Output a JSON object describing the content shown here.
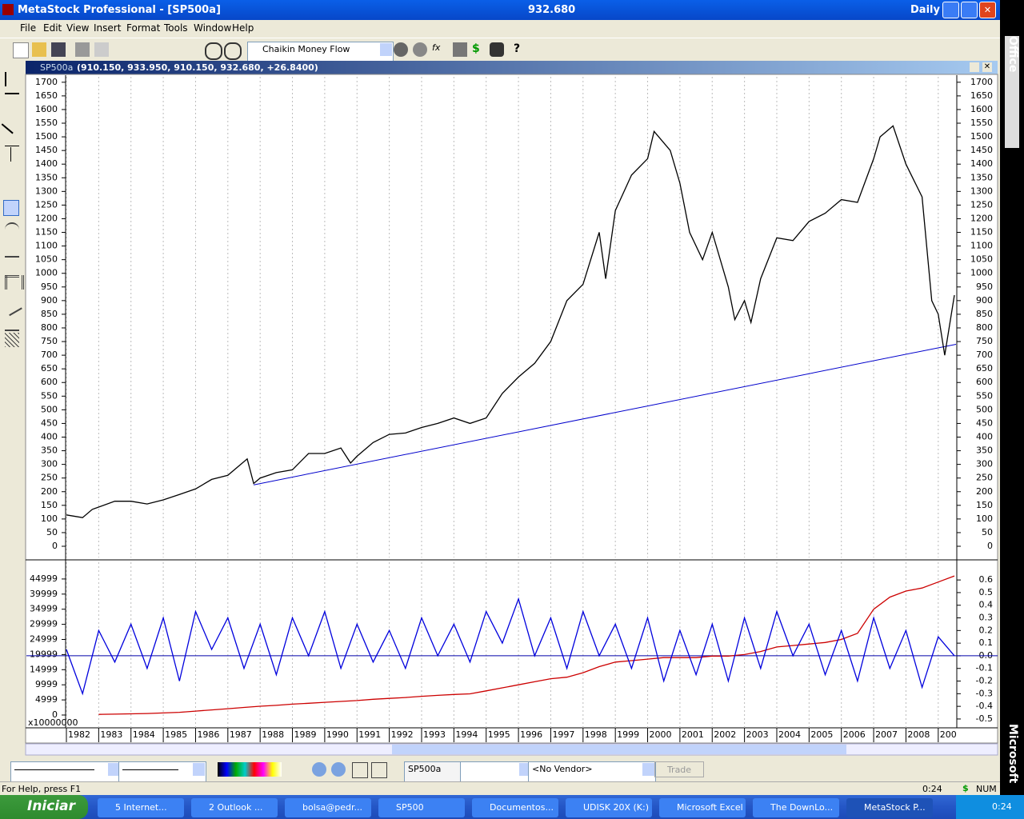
{
  "window": {
    "app_title": "MetaStock Professional - [SP500a]",
    "last_price": "932.680",
    "periodicity": "Daily"
  },
  "menu": [
    "File",
    "Edit",
    "View",
    "Insert",
    "Format",
    "Tools",
    "Window",
    "Help"
  ],
  "toolbar": {
    "indicator": "Chaikin Money Flow"
  },
  "chart_window": {
    "symbol": "SP500a",
    "ohlc": "(910.150, 933.950, 910.150, 932.680, +26.8400)"
  },
  "chart_data": [
    {
      "type": "line",
      "x": [
        1982,
        1982.5,
        1982.8,
        1983.5,
        1984,
        1984.5,
        1985,
        1985.5,
        1986,
        1986.5,
        1987,
        1987.6,
        1987.8,
        1988,
        1988.5,
        1989,
        1989.5,
        1990,
        1990.5,
        1990.8,
        1991,
        1991.5,
        1992,
        1992.5,
        1993,
        1993.5,
        1994,
        1994.5,
        1995,
        1995.5,
        1996,
        1996.5,
        1997,
        1997.5,
        1998,
        1998.5,
        1998.7,
        1999,
        1999.5,
        2000,
        2000.2,
        2000.7,
        2001,
        2001.3,
        2001.7,
        2002,
        2002.5,
        2002.7,
        2003,
        2003.2,
        2003.5,
        2004,
        2004.5,
        2005,
        2005.5,
        2006,
        2006.5,
        2007,
        2007.2,
        2007.6,
        2008,
        2008.5,
        2008.8,
        2009,
        2009.2,
        2009.5
      ],
      "series": [
        {
          "color": "#000000",
          "values": [
            115,
            105,
            135,
            165,
            165,
            155,
            170,
            190,
            210,
            245,
            260,
            320,
            230,
            250,
            270,
            280,
            340,
            340,
            360,
            305,
            330,
            380,
            410,
            415,
            435,
            450,
            470,
            450,
            470,
            560,
            620,
            670,
            750,
            900,
            960,
            1150,
            980,
            1230,
            1360,
            1420,
            1520,
            1450,
            1330,
            1150,
            1050,
            1150,
            950,
            830,
            900,
            820,
            980,
            1130,
            1120,
            1190,
            1220,
            1270,
            1260,
            1420,
            1500,
            1540,
            1400,
            1280,
            900,
            850,
            700,
            920
          ]
        }
      ],
      "trendline": {
        "color": "#0000cc",
        "x": [
          1987.8,
          2009.55
        ],
        "values": [
          225,
          740
        ]
      },
      "xlim": [
        1982,
        2009.55
      ],
      "ylim": [
        -41,
        1720
      ],
      "xticks": [
        1982,
        1983,
        1984,
        1985,
        1986,
        1987,
        1988,
        1989,
        1990,
        1991,
        1992,
        1993,
        1994,
        1995,
        1996,
        1997,
        1998,
        1999,
        2000,
        2001,
        2002,
        2003,
        2004,
        2005,
        2006,
        2007,
        2008,
        {
          "value": 2009,
          "label": "200"
        }
      ],
      "yticks": [
        0,
        50,
        100,
        150,
        200,
        250,
        300,
        350,
        400,
        450,
        500,
        550,
        600,
        650,
        700,
        750,
        800,
        850,
        900,
        950,
        1000,
        1050,
        1100,
        1150,
        1200,
        1250,
        1300,
        1350,
        1400,
        1450,
        1500,
        1550,
        1600,
        1650,
        1700
      ],
      "grid": "x"
    },
    {
      "type": "line",
      "x": [
        1982,
        1982.5,
        1983,
        1983.5,
        1984,
        1984.5,
        1985,
        1985.5,
        1986,
        1986.5,
        1987,
        1987.5,
        1988,
        1988.5,
        1989,
        1989.5,
        1990,
        1990.5,
        1991,
        1991.5,
        1992,
        1992.5,
        1993,
        1993.5,
        1994,
        1994.5,
        1995,
        1995.5,
        1996,
        1996.5,
        1997,
        1997.5,
        1998,
        1998.5,
        1999,
        1999.5,
        2000,
        2000.5,
        2001,
        2001.5,
        2002,
        2002.5,
        2003,
        2003.5,
        2004,
        2004.5,
        2005,
        2005.5,
        2006,
        2006.5,
        2007,
        2007.5,
        2008,
        2008.5,
        2009,
        2009.5
      ],
      "series": [
        {
          "color": "#cc0000",
          "values": [
            null,
            null,
            200,
            300,
            400,
            500,
            700,
            900,
            1300,
            1700,
            2100,
            2500,
            2900,
            3200,
            3600,
            3900,
            4200,
            4500,
            4800,
            5200,
            5500,
            5800,
            6200,
            6500,
            6800,
            7000,
            8000,
            9000,
            10000,
            11000,
            12000,
            12500,
            14000,
            16000,
            17500,
            18000,
            18500,
            19000,
            19000,
            19000,
            19500,
            19500,
            20000,
            21000,
            22500,
            23000,
            23500,
            24000,
            25000,
            27000,
            35000,
            39000,
            41000,
            42000,
            44000,
            46000
          ]
        },
        {
          "color": "#0000dd",
          "axis": "y2",
          "values": [
            0.05,
            -0.3,
            0.2,
            -0.05,
            0.25,
            -0.1,
            0.3,
            -0.2,
            0.35,
            0.05,
            0.3,
            -0.1,
            0.25,
            -0.15,
            0.3,
            0.0,
            0.35,
            -0.1,
            0.25,
            -0.05,
            0.2,
            -0.1,
            0.3,
            0.0,
            0.25,
            -0.05,
            0.35,
            0.1,
            0.45,
            0.0,
            0.3,
            -0.1,
            0.35,
            0.0,
            0.25,
            -0.1,
            0.3,
            -0.2,
            0.2,
            -0.15,
            0.25,
            -0.2,
            0.3,
            -0.1,
            0.35,
            0.0,
            0.25,
            -0.15,
            0.2,
            -0.2,
            0.3,
            -0.1,
            0.2,
            -0.25,
            0.15,
            0.0
          ]
        }
      ],
      "xlim": [
        1982,
        2009.55
      ],
      "ylim": [
        -4233,
        50529
      ],
      "y2lim": [
        -0.57,
        0.74
      ],
      "yticks": [
        0,
        4999,
        9999,
        14999,
        19999,
        24999,
        29999,
        34999,
        39999,
        44999
      ],
      "y2ticks": [
        -0.5,
        -0.4,
        -0.3,
        -0.2,
        -0.1,
        {
          "value": 0,
          "label": "0.0"
        },
        0.1,
        0.2,
        0.3,
        0.4,
        0.5,
        0.6
      ],
      "y_multiplier": "x10000000"
    }
  ],
  "bottom_toolbar": {
    "security": "SP500a",
    "vendor": "<No Vendor>",
    "trade": "Trade"
  },
  "status_bar": {
    "help": "For Help, press F1",
    "time": "0:24",
    "currency": "$",
    "num": "NUM"
  },
  "taskbar": {
    "start": "Iniciar",
    "items": [
      "5 Internet...",
      "2 Outlook ...",
      "bolsa@pedr...",
      "SP500",
      "Documentos...",
      "UDISK 20X (K:)",
      "Microsoft Excel",
      "The DownLo...",
      "MetaStock P..."
    ],
    "clock": "0:24"
  },
  "office_bar": {
    "top": "Office",
    "bottom": "Microsoft"
  }
}
